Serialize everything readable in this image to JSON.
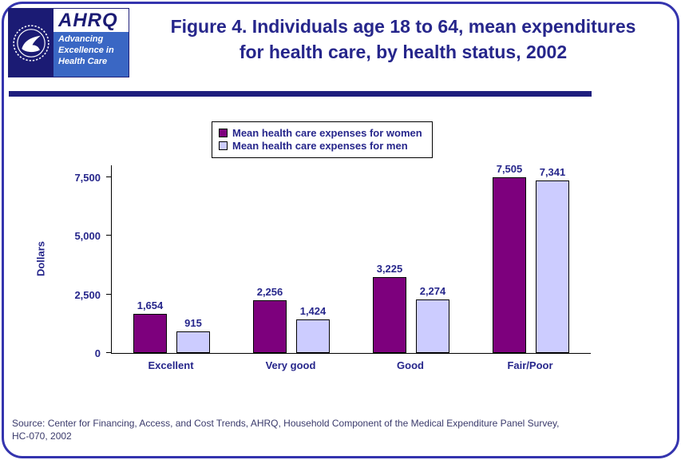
{
  "colors": {
    "navy_text": "#26268B",
    "page_border": "#3434AE",
    "divider_bar": "#1F1F7E",
    "women_bar": "#7D007D",
    "men_bar": "#CCCCFF",
    "axis": "#000000",
    "hhs_seal_bg": "#1B1B74",
    "tagline_bg": "#3A67C4"
  },
  "header": {
    "logo": {
      "acronym": "AHRQ",
      "tagline_line1": "Advancing",
      "tagline_line2": "Excellence in",
      "tagline_line3": "Health Care"
    },
    "title_line1": "Figure 4. Individuals age 18 to 64, mean expenditures",
    "title_line2": "for health care, by health status, 2002"
  },
  "chart_data": {
    "type": "bar",
    "title": "Figure 4. Individuals age 18 to 64, mean expenditures for health care, by health status, 2002",
    "categories": [
      "Excellent",
      "Very good",
      "Good",
      "Fair/Poor"
    ],
    "series": [
      {
        "key": "women",
        "name": "Mean health care expenses for women",
        "values": [
          1654,
          2256,
          3225,
          7505
        ],
        "color": "#7D007D"
      },
      {
        "key": "men",
        "name": "Mean health care expenses for men",
        "values": [
          915,
          1424,
          2274,
          7341
        ],
        "color": "#CCCCFF"
      }
    ],
    "xlabel": "",
    "ylabel": "Dollars",
    "yticks": [
      0,
      2500,
      5000,
      7500
    ],
    "ylim": [
      0,
      8000
    ],
    "grid": false,
    "legend_position": "top",
    "value_labels": true
  },
  "footer": {
    "source_line1": "Source: Center for Financing, Access, and Cost Trends, AHRQ, Household Component of the Medical Expenditure Panel Survey,",
    "source_line2": "HC-070, 2002"
  }
}
